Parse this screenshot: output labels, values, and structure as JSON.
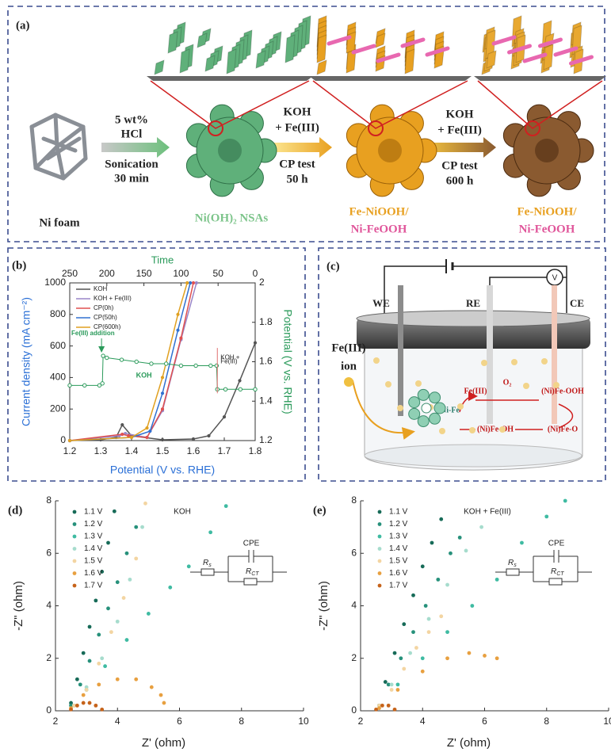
{
  "panel_a": {
    "label": "(a)",
    "start": "Ni foam",
    "step1": [
      "5 wt%",
      "HCl",
      "Sonication",
      "30 min"
    ],
    "product1": "Ni(OH)₂ NSAs",
    "step2": [
      "KOH",
      "+ Fe(III)",
      "CP test",
      "50 h"
    ],
    "product2": [
      "Fe-NiOOH/",
      "Ni-FeOOH"
    ],
    "step3": [
      "KOH",
      "+ Fe(III)",
      "CP test",
      "600 h"
    ],
    "product3": [
      "Fe-NiOOH/",
      "Ni-FeOOH"
    ]
  },
  "panel_c": {
    "label": "(c)",
    "electrodes": [
      "WE",
      "RE",
      "CE"
    ],
    "meter": "V",
    "ion": [
      "Fe(III)",
      "ion"
    ],
    "cycle": {
      "fe3": "Fe(III)",
      "o2": "O₂",
      "feooh": "(Ni)Fe-OOH",
      "nife": "Ni-Fe",
      "feoh": "(Ni)Fe-OH",
      "feo": "(Ni)Fe-O"
    }
  },
  "chart_data": [
    {
      "type": "line",
      "panel_label": "(b)",
      "xlabel": "Potential (V vs. RHE)",
      "ylabel": "Current density (mA cm⁻²)",
      "y2label": "Potential (V vs. RHE)",
      "x2label": "Time",
      "xlim": [
        1.2,
        1.8
      ],
      "xticks": [
        1.2,
        1.3,
        1.4,
        1.5,
        1.6,
        1.7,
        1.8
      ],
      "ylim": [
        0,
        1000
      ],
      "yticks": [
        0,
        200,
        400,
        600,
        800,
        1000
      ],
      "y2lim": [
        1.2,
        2.0
      ],
      "y2ticks": [
        1.2,
        1.4,
        1.6,
        1.8,
        2.0
      ],
      "x2lim": [
        250,
        0
      ],
      "x2ticks": [
        250,
        200,
        150,
        100,
        50,
        0
      ],
      "annotations": [
        "Fe(III) addition",
        "KOH",
        "KOH +",
        "Fe(III)"
      ],
      "series": [
        {
          "name": "KOH",
          "color": "#555555",
          "x": [
            1.2,
            1.3,
            1.35,
            1.37,
            1.4,
            1.5,
            1.6,
            1.65,
            1.7,
            1.75,
            1.8
          ],
          "values": [
            0,
            5,
            20,
            100,
            30,
            5,
            10,
            30,
            150,
            380,
            620
          ]
        },
        {
          "name": "KOH + Fe(III)",
          "color": "#9a86c8",
          "x": [
            1.2,
            1.36,
            1.38,
            1.45,
            1.5,
            1.56,
            1.61
          ],
          "values": [
            0,
            30,
            45,
            20,
            190,
            640,
            1000
          ]
        },
        {
          "name": "CP(0h)",
          "color": "#e05050",
          "x": [
            1.2,
            1.37,
            1.39,
            1.45,
            1.5,
            1.56,
            1.6
          ],
          "values": [
            0,
            40,
            30,
            20,
            200,
            650,
            1000
          ]
        },
        {
          "name": "CP(50h)",
          "color": "#3070d0",
          "x": [
            1.2,
            1.4,
            1.46,
            1.5,
            1.55,
            1.59
          ],
          "values": [
            0,
            20,
            60,
            300,
            700,
            1000
          ]
        },
        {
          "name": "CP(600h)",
          "color": "#e0a020",
          "x": [
            1.2,
            1.4,
            1.45,
            1.5,
            1.55,
            1.58
          ],
          "values": [
            0,
            20,
            80,
            400,
            800,
            1000
          ]
        },
        {
          "axis": "y2",
          "color": "#2a9a5a",
          "x": [
            250,
            230,
            210,
            206,
            205,
            200,
            180,
            160,
            140,
            120,
            100,
            80,
            60,
            52,
            51,
            40,
            20,
            0
          ],
          "values": [
            1.48,
            1.48,
            1.48,
            1.49,
            1.63,
            1.62,
            1.61,
            1.6,
            1.59,
            1.59,
            1.58,
            1.58,
            1.58,
            1.58,
            1.46,
            1.46,
            1.46,
            1.46
          ]
        }
      ]
    },
    {
      "type": "scatter",
      "panel_label": "(d)",
      "annotation": "KOH",
      "xlabel": "Z' (ohm)",
      "ylabel": "-Z\" (ohm)",
      "xlim": [
        2,
        10
      ],
      "xticks": [
        2,
        4,
        6,
        8,
        10
      ],
      "ylim": [
        0,
        8
      ],
      "yticks": [
        0,
        2,
        4,
        6,
        8
      ],
      "circuit": {
        "cpe": "CPE",
        "rs": {
          "main": "R",
          "sub": "s"
        },
        "rct": {
          "main": "R",
          "sub": "CT"
        }
      },
      "series": [
        {
          "name": "1.1 V",
          "color": "#176b58",
          "x": [
            2.5,
            2.7,
            2.9,
            3.1,
            3.3,
            3.5,
            3.7,
            3.9
          ],
          "values": [
            0.3,
            1.2,
            2.2,
            3.2,
            4.2,
            5.3,
            6.4,
            7.6
          ]
        },
        {
          "name": "1.2 V",
          "color": "#27917b",
          "x": [
            2.5,
            2.8,
            3.1,
            3.4,
            3.7,
            4.0,
            4.3,
            4.6
          ],
          "values": [
            0.2,
            1.0,
            1.9,
            2.9,
            3.9,
            4.9,
            6.0,
            7.0
          ]
        },
        {
          "name": "1.3 V",
          "color": "#3fbba2",
          "x": [
            2.6,
            3.0,
            3.6,
            4.3,
            5.0,
            5.7,
            6.3,
            7.0,
            7.5
          ],
          "values": [
            0.2,
            0.8,
            1.7,
            2.7,
            3.7,
            4.7,
            5.5,
            6.8,
            7.8
          ]
        },
        {
          "name": "1.4 V",
          "color": "#a6dccd",
          "x": [
            2.6,
            3.0,
            3.5,
            4.0,
            4.4,
            4.8
          ],
          "values": [
            0.2,
            0.9,
            2.0,
            3.4,
            5.0,
            7.0
          ]
        },
        {
          "name": "1.5 V",
          "color": "#f3d5a2",
          "x": [
            2.6,
            3.0,
            3.4,
            3.8,
            4.2,
            4.6,
            4.9
          ],
          "values": [
            0.2,
            0.8,
            1.8,
            3.0,
            4.3,
            5.8,
            7.9
          ]
        },
        {
          "name": "1.6 V",
          "color": "#e8a040",
          "x": [
            2.5,
            2.9,
            3.4,
            4.0,
            4.6,
            5.1,
            5.4,
            5.5
          ],
          "values": [
            0.1,
            0.6,
            1.0,
            1.2,
            1.2,
            0.9,
            0.6,
            0.3
          ]
        },
        {
          "name": "1.7 V",
          "color": "#c6631a",
          "x": [
            2.5,
            2.7,
            2.9,
            3.1,
            3.3,
            3.5
          ],
          "values": [
            0.05,
            0.2,
            0.3,
            0.3,
            0.2,
            0.05
          ]
        }
      ]
    },
    {
      "type": "scatter",
      "panel_label": "(e)",
      "annotation": "KOH + Fe(III)",
      "xlabel": "Z' (ohm)",
      "ylabel": "-Z\" (ohm)",
      "xlim": [
        2,
        10
      ],
      "xticks": [
        2,
        4,
        6,
        8,
        10
      ],
      "ylim": [
        0,
        8
      ],
      "yticks": [
        0,
        2,
        4,
        6,
        8
      ],
      "circuit": {
        "cpe": "CPE",
        "rs": {
          "main": "R",
          "sub": "s"
        },
        "rct": {
          "main": "R",
          "sub": "CT"
        }
      },
      "series": [
        {
          "name": "1.1 V",
          "color": "#176b58",
          "x": [
            2.6,
            2.8,
            3.1,
            3.4,
            3.7,
            4.0,
            4.3,
            4.6
          ],
          "values": [
            0.2,
            1.1,
            2.2,
            3.3,
            4.4,
            5.5,
            6.4,
            7.3
          ]
        },
        {
          "name": "1.2 V",
          "color": "#27917b",
          "x": [
            2.6,
            2.9,
            3.3,
            3.7,
            4.1,
            4.5,
            4.9,
            5.2
          ],
          "values": [
            0.2,
            1.0,
            2.0,
            3.0,
            4.0,
            5.0,
            6.0,
            6.6
          ]
        },
        {
          "name": "1.3 V",
          "color": "#3fbba2",
          "x": [
            2.6,
            3.2,
            4.0,
            4.8,
            5.6,
            6.4,
            7.2,
            8.0,
            8.6
          ],
          "values": [
            0.2,
            1.0,
            2.0,
            3.0,
            4.0,
            5.0,
            6.4,
            7.4,
            8.0
          ]
        },
        {
          "name": "1.4 V",
          "color": "#a6dccd",
          "x": [
            2.6,
            3.0,
            3.6,
            4.2,
            4.8,
            5.4,
            5.9
          ],
          "values": [
            0.2,
            1.0,
            2.2,
            3.5,
            4.8,
            6.1,
            7.0
          ]
        },
        {
          "name": "1.5 V",
          "color": "#f3d5a2",
          "x": [
            2.6,
            3.0,
            3.4,
            3.8,
            4.2,
            4.6
          ],
          "values": [
            0.2,
            0.8,
            1.6,
            2.4,
            3.0,
            3.6
          ]
        },
        {
          "name": "1.6 V",
          "color": "#e8a040",
          "x": [
            2.6,
            3.2,
            4.0,
            4.8,
            5.5,
            6.0,
            6.4
          ],
          "values": [
            0.1,
            0.8,
            1.5,
            2.0,
            2.2,
            2.1,
            2.0
          ]
        },
        {
          "name": "1.7 V",
          "color": "#c6631a",
          "x": [
            2.5,
            2.7,
            2.9,
            3.1
          ],
          "values": [
            0.05,
            0.2,
            0.2,
            0.05
          ]
        }
      ]
    }
  ]
}
